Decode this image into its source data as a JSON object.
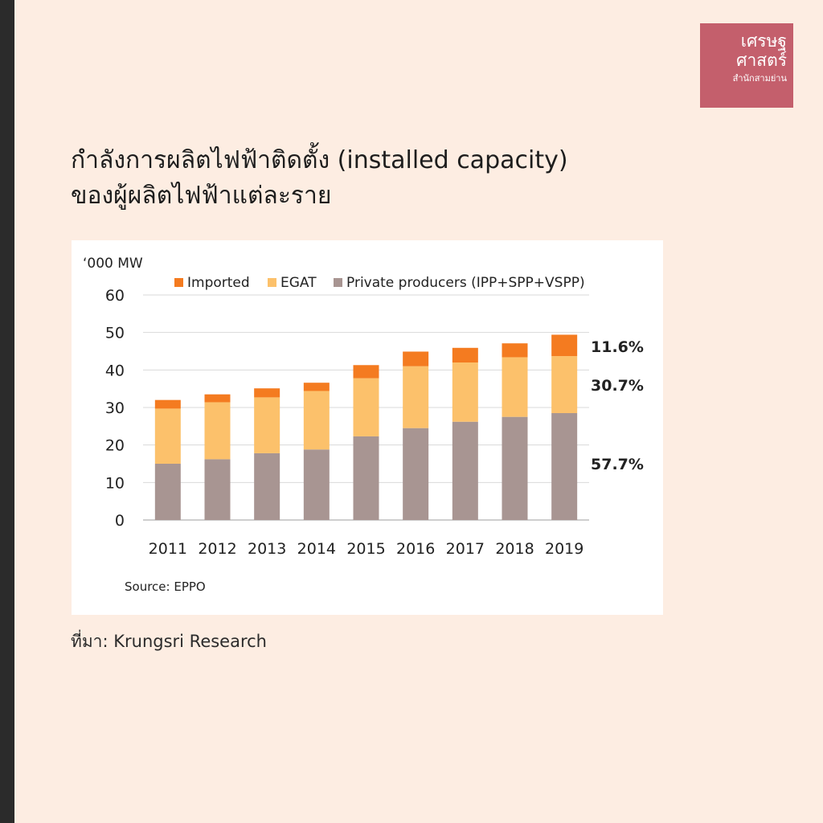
{
  "logo": {
    "line1": "เศรษฐ",
    "line2": "ศาสตร์",
    "line3": "สำนักสามย่าน"
  },
  "title": {
    "line1": "กำลังการผลิตไฟฟ้าติดตั้ง (installed capacity)",
    "line2": "ของผู้ผลิตไฟฟ้าแต่ละราย"
  },
  "footer": {
    "source": "ที่มา: Krungsri Research"
  },
  "colors": {
    "background": "#fdede2",
    "imported": "#f47b20",
    "egat": "#fcc16b",
    "private": "#a89592"
  },
  "chart_data": {
    "type": "bar",
    "stacked": true,
    "ylabel": "‘000 MW",
    "ylim": [
      0,
      60
    ],
    "yticks": [
      0,
      10,
      20,
      30,
      40,
      50,
      60
    ],
    "grid": true,
    "legend_position": "top",
    "categories": [
      "2011",
      "2012",
      "2013",
      "2014",
      "2015",
      "2016",
      "2017",
      "2018",
      "2019"
    ],
    "series": [
      {
        "name": "Private producers (IPP+SPP+VSPP)",
        "color": "#a89592",
        "values": [
          15,
          16.2,
          17.8,
          18.8,
          22.3,
          24.5,
          26.2,
          27.5,
          28.5
        ]
      },
      {
        "name": "EGAT",
        "color": "#fcc16b",
        "values": [
          14.7,
          15.2,
          14.9,
          15.6,
          15.5,
          16.5,
          15.8,
          15.9,
          15.2
        ]
      },
      {
        "name": "Imported",
        "color": "#f47b20",
        "values": [
          2.3,
          2.1,
          2.4,
          2.2,
          3.5,
          3.9,
          3.9,
          3.7,
          5.7
        ]
      }
    ],
    "legend_order": [
      "Imported",
      "EGAT",
      "Private producers (IPP+SPP+VSPP)"
    ],
    "annotations": [
      "11.6%",
      "30.7%",
      "57.7%"
    ],
    "source": "Source:  EPPO"
  }
}
